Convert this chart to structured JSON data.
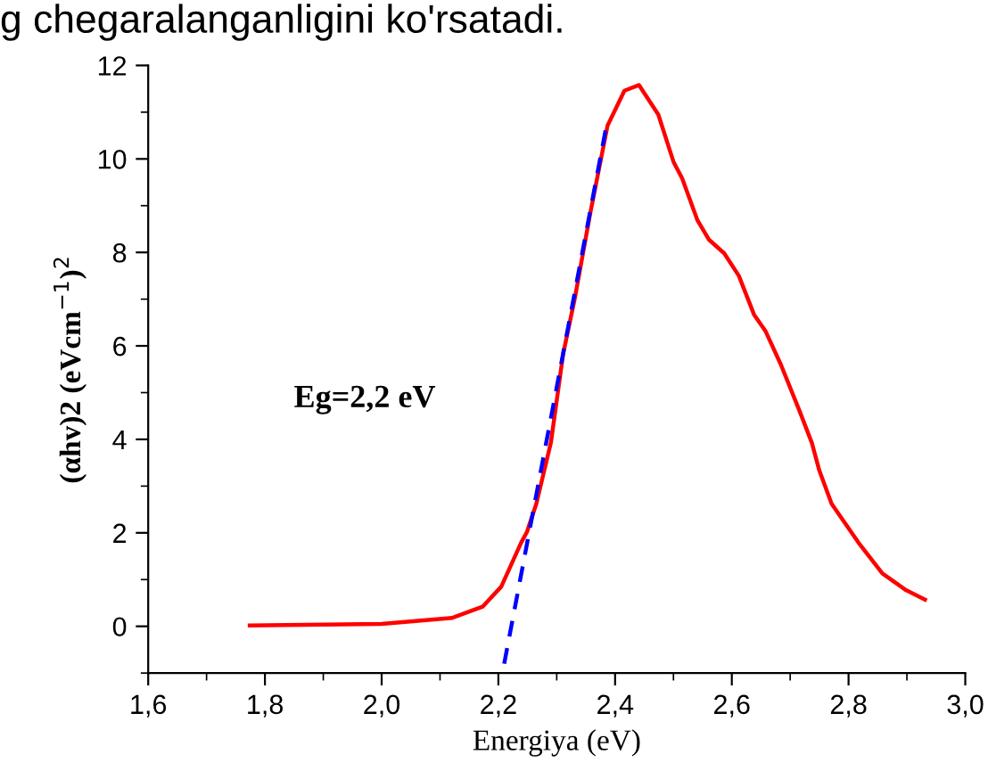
{
  "chart_data": {
    "type": "line",
    "xlabel": "Energiya (eV)",
    "ylabel": "(αhv)2 (eVcm$^{−1}$)$^{2}$",
    "annotations": [
      "g chegaralanganligini ko'rsatadi.",
      "Eg=2,2 eV"
    ],
    "xlim": [
      1.6,
      3.0
    ],
    "ylim": [
      -1,
      12
    ],
    "xticks": [
      {
        "value": 1.6,
        "label": "1,6"
      },
      {
        "value": 1.8,
        "label": "1,8"
      },
      {
        "value": 2.0,
        "label": "2,0"
      },
      {
        "value": 2.2,
        "label": "2,2"
      },
      {
        "value": 2.4,
        "label": "2,4"
      },
      {
        "value": 2.6,
        "label": "2,6"
      },
      {
        "value": 2.8,
        "label": "2,8"
      },
      {
        "value": 3.0,
        "label": "3,0"
      }
    ],
    "yticks": [
      0,
      2,
      4,
      6,
      8,
      10,
      12
    ],
    "grid": false,
    "legend": false,
    "series": [
      {
        "color": "#ff0000",
        "line_style": "solid",
        "x": [
          1.774,
          2.0,
          2.121,
          2.173,
          2.205,
          2.239,
          2.249,
          2.265,
          2.29,
          2.311,
          2.331,
          2.357,
          2.387,
          2.416,
          2.441,
          2.474,
          2.5,
          2.515,
          2.541,
          2.561,
          2.587,
          2.612,
          2.638,
          2.658,
          2.684,
          2.715,
          2.737,
          2.75,
          2.771,
          2.817,
          2.858,
          2.899,
          2.931
        ],
        "values": [
          0.02,
          0.05,
          0.18,
          0.42,
          0.85,
          1.79,
          2.02,
          2.62,
          3.93,
          5.83,
          7.02,
          8.81,
          10.71,
          11.46,
          11.58,
          10.95,
          9.94,
          9.58,
          8.69,
          8.27,
          7.98,
          7.5,
          6.67,
          6.31,
          5.6,
          4.64,
          3.93,
          3.33,
          2.62,
          1.79,
          1.13,
          0.77,
          0.57
        ]
      },
      {
        "color": "#0000ff",
        "line_style": "dashed",
        "x": [
          2.21,
          2.385
        ],
        "values": [
          -0.8,
          10.7
        ]
      }
    ]
  }
}
